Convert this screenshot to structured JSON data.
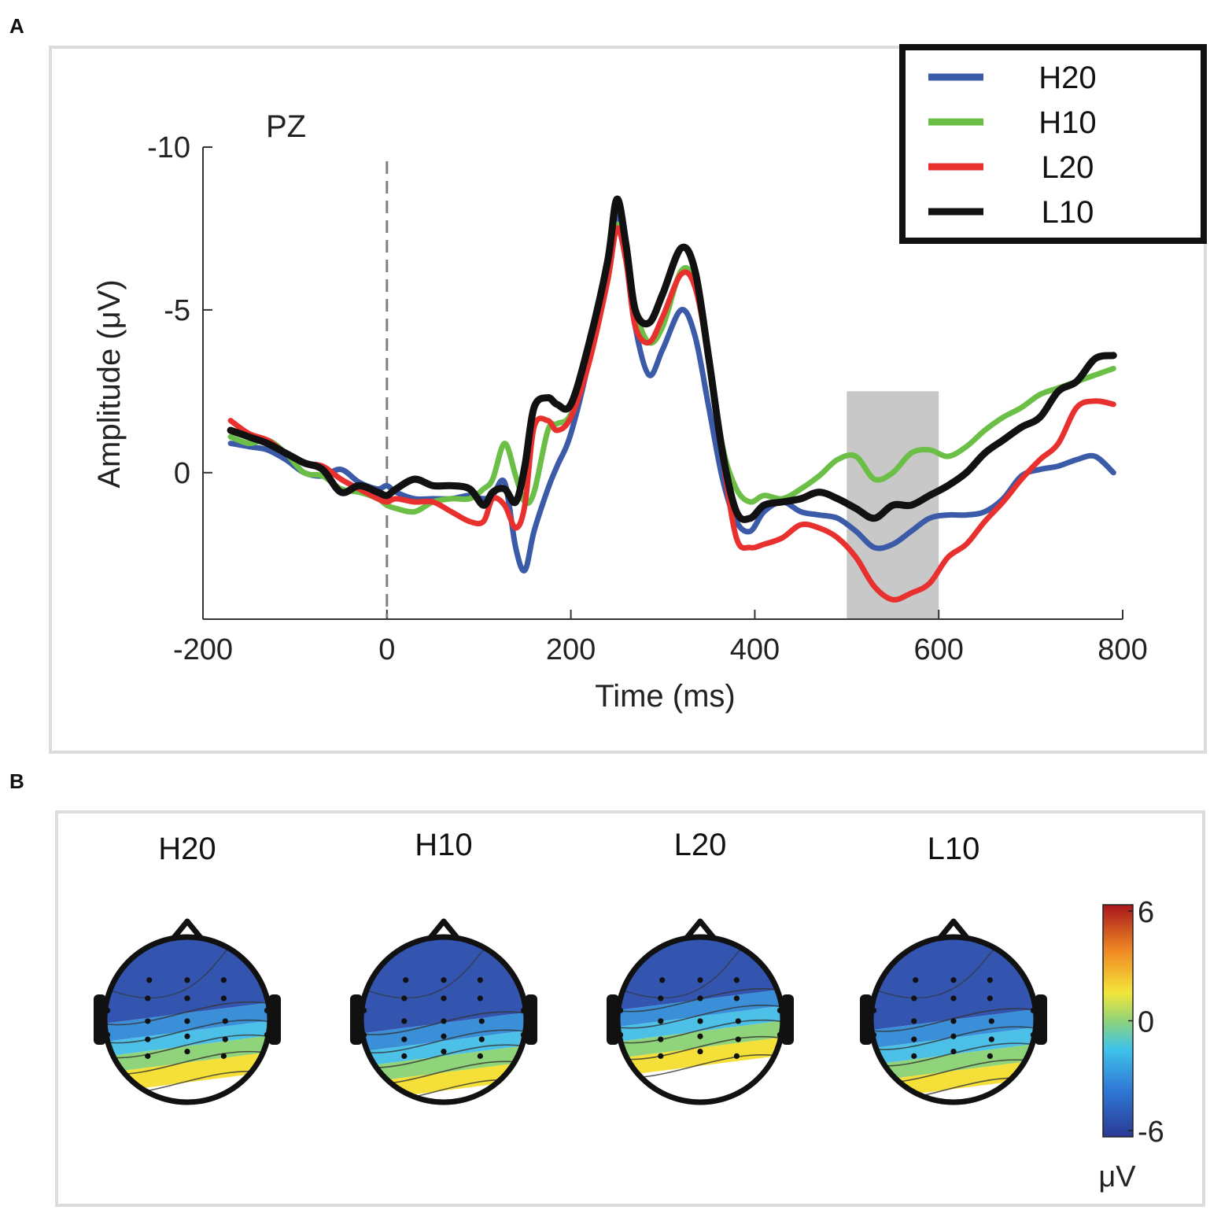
{
  "panels": {
    "a_label": "A",
    "b_label": "B"
  },
  "chart_data": {
    "type": "line",
    "title": "PZ",
    "xlabel": "Time (ms)",
    "ylabel": "Amplitude (μV)",
    "xlim": [
      -200,
      800
    ],
    "ylim": [
      -10,
      4.5
    ],
    "y_inverted": true,
    "xticks": [
      -200,
      0,
      200,
      400,
      600,
      800
    ],
    "xtick_labels": [
      "-200",
      "0",
      "200",
      "400",
      "600",
      "800"
    ],
    "yticks": [
      -10,
      -5,
      0
    ],
    "ytick_labels": [
      "-10",
      "-5",
      "0"
    ],
    "stimulus_onset_ms": 0,
    "shaded_window_ms": [
      500,
      600
    ],
    "shaded_window_uv": [
      -2.5,
      4.5
    ],
    "legend": [
      "H20",
      "H10",
      "L20",
      "L10"
    ],
    "x": [
      -170,
      -150,
      -130,
      -110,
      -90,
      -70,
      -50,
      -30,
      -10,
      0,
      10,
      30,
      50,
      70,
      90,
      105,
      115,
      128,
      140,
      150,
      160,
      175,
      185,
      200,
      220,
      240,
      250,
      260,
      270,
      285,
      300,
      320,
      335,
      350,
      365,
      380,
      395,
      410,
      430,
      450,
      470,
      490,
      510,
      530,
      550,
      570,
      590,
      610,
      630,
      650,
      670,
      690,
      710,
      730,
      750,
      770,
      790
    ],
    "series": [
      {
        "name": "H20",
        "color": "#3b5aa8",
        "values": [
          -0.9,
          -0.8,
          -0.7,
          -0.4,
          0,
          0.1,
          -0.1,
          0.3,
          0.5,
          0.4,
          0.6,
          0.8,
          0.8,
          0.8,
          0.7,
          0.8,
          0.7,
          0.3,
          2.3,
          3.0,
          1.8,
          0.5,
          -0.2,
          -1.2,
          -3.5,
          -6.5,
          -7.9,
          -6.8,
          -4.5,
          -3.0,
          -3.8,
          -5.0,
          -4.2,
          -2.0,
          0.2,
          1.5,
          1.8,
          1.2,
          0.9,
          1.2,
          1.3,
          1.4,
          1.8,
          2.3,
          2.2,
          1.8,
          1.4,
          1.3,
          1.3,
          1.2,
          0.8,
          0.1,
          -0.1,
          -0.2,
          -0.4,
          -0.5,
          0
        ]
      },
      {
        "name": "H10",
        "color": "#6bbf46",
        "values": [
          -1.1,
          -0.9,
          -1.0,
          -0.6,
          0,
          0.1,
          0.5,
          0.6,
          0.8,
          1.0,
          1.1,
          1.2,
          0.9,
          0.8,
          0.8,
          0.5,
          0.2,
          -0.9,
          0.1,
          0.9,
          0.6,
          -1.3,
          -1.5,
          -1.8,
          -3.5,
          -6.0,
          -7.6,
          -6.8,
          -5.0,
          -4.0,
          -4.5,
          -6.2,
          -5.8,
          -3.5,
          -0.8,
          0.5,
          0.9,
          0.7,
          0.8,
          0.5,
          0.1,
          -0.4,
          -0.5,
          0.2,
          0,
          -0.6,
          -0.7,
          -0.5,
          -0.8,
          -1.3,
          -1.7,
          -2.0,
          -2.4,
          -2.6,
          -2.8,
          -3.0,
          -3.2
        ]
      },
      {
        "name": "L20",
        "color": "#e8312f",
        "values": [
          -1.6,
          -1.2,
          -1.0,
          -0.6,
          -0.3,
          -0.2,
          0.2,
          0.5,
          0.8,
          0.9,
          0.8,
          0.9,
          0.9,
          1.2,
          1.5,
          1.5,
          0.8,
          1.0,
          1.7,
          1.0,
          -1.4,
          -1.6,
          -1.3,
          -1.7,
          -3.4,
          -5.9,
          -7.5,
          -6.5,
          -4.5,
          -4.0,
          -4.8,
          -6.1,
          -5.7,
          -3.5,
          -0.5,
          2.0,
          2.3,
          2.2,
          2.0,
          1.6,
          1.7,
          2.0,
          2.6,
          3.5,
          3.9,
          3.7,
          3.4,
          2.6,
          2.2,
          1.5,
          0.9,
          0.2,
          -0.4,
          -0.9,
          -2.0,
          -2.2,
          -2.1
        ]
      },
      {
        "name": "L10",
        "color": "#111111",
        "values": [
          -1.3,
          -1.1,
          -0.9,
          -0.6,
          -0.3,
          -0.1,
          0.6,
          0.4,
          0.6,
          0.7,
          0.5,
          0.2,
          0.4,
          0.4,
          0.5,
          1.0,
          0.6,
          0.5,
          0.9,
          -0.2,
          -2.0,
          -2.3,
          -2.1,
          -2.1,
          -4.0,
          -6.5,
          -8.4,
          -7.0,
          -5.0,
          -4.6,
          -5.5,
          -6.9,
          -6.2,
          -3.5,
          -0.6,
          1.2,
          1.4,
          1.0,
          0.9,
          0.8,
          0.6,
          0.8,
          1.1,
          1.4,
          1.0,
          1.0,
          0.7,
          0.4,
          0.0,
          -0.6,
          -1.0,
          -1.4,
          -1.7,
          -2.5,
          -2.8,
          -3.5,
          -3.6
        ]
      }
    ]
  },
  "topomaps": {
    "maps": [
      {
        "label": "H20",
        "boundaries": [
          0.46,
          0.57,
          0.66,
          0.76,
          0.88
        ]
      },
      {
        "label": "H10",
        "boundaries": [
          0.52,
          0.63,
          0.72,
          0.82,
          0.93
        ]
      },
      {
        "label": "L20",
        "boundaries": [
          0.38,
          0.48,
          0.57,
          0.67,
          0.78
        ]
      },
      {
        "label": "L10",
        "boundaries": [
          0.5,
          0.61,
          0.71,
          0.81,
          0.92
        ]
      }
    ],
    "colorbar": {
      "ticks": [
        "6",
        "0",
        "-6"
      ],
      "unit": "μV",
      "range": [
        -6,
        6
      ]
    },
    "band_colors": [
      "#3355b0",
      "#3a8fd8",
      "#4dc0e8",
      "#8fd37a",
      "#f5e03a",
      "#f5a22a",
      "#e8402a"
    ]
  }
}
